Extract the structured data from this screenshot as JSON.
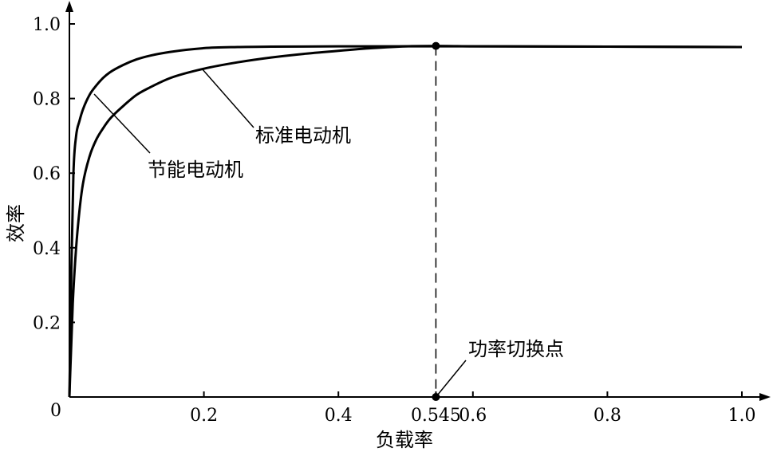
{
  "chart_data": {
    "type": "line",
    "title": "",
    "xlabel": "负载率",
    "ylabel": "效率",
    "xlim": [
      0,
      1.0
    ],
    "ylim": [
      0,
      1.0
    ],
    "x_ticks": [
      "0.2",
      "0.4",
      "0.545",
      "0.6",
      "0.8",
      "1.0"
    ],
    "x_tick_values": [
      0.2,
      0.4,
      0.545,
      0.6,
      0.8,
      1.0
    ],
    "y_ticks": [
      "0.2",
      "0.4",
      "0.6",
      "0.8",
      "1.0"
    ],
    "y_tick_values": [
      0.2,
      0.4,
      0.6,
      0.8,
      1.0
    ],
    "origin_label": "0",
    "grid": false,
    "series": [
      {
        "name": "节能电动机",
        "x": [
          0.0,
          0.003,
          0.006,
          0.01,
          0.015,
          0.02,
          0.03,
          0.04,
          0.05,
          0.06,
          0.08,
          0.1,
          0.12,
          0.15,
          0.2,
          0.25,
          0.3,
          0.4,
          0.5,
          0.6,
          0.8,
          1.0
        ],
        "values": [
          0.0,
          0.35,
          0.6,
          0.7,
          0.74,
          0.77,
          0.81,
          0.835,
          0.855,
          0.87,
          0.89,
          0.905,
          0.915,
          0.925,
          0.935,
          0.938,
          0.939,
          0.94,
          0.94,
          0.94,
          0.939,
          0.938
        ]
      },
      {
        "name": "标准电动机",
        "x": [
          0.0,
          0.005,
          0.01,
          0.015,
          0.02,
          0.03,
          0.04,
          0.05,
          0.06,
          0.08,
          0.1,
          0.12,
          0.15,
          0.2,
          0.25,
          0.3,
          0.35,
          0.4,
          0.45,
          0.5,
          0.545,
          0.6,
          0.8,
          1.0
        ],
        "values": [
          0.0,
          0.25,
          0.4,
          0.5,
          0.57,
          0.645,
          0.69,
          0.72,
          0.745,
          0.78,
          0.81,
          0.83,
          0.855,
          0.88,
          0.897,
          0.91,
          0.92,
          0.928,
          0.935,
          0.94,
          0.941,
          0.94,
          0.939,
          0.938
        ]
      }
    ],
    "annotations": [
      {
        "text": "功率切换点",
        "x": 0.545,
        "y": 0.941,
        "marker": true,
        "dashed_drop_line": true
      },
      {
        "text": "标准电动机",
        "leader_to_series": "标准电动机"
      },
      {
        "text": "节能电动机",
        "leader_to_series": "节能电动机"
      }
    ],
    "colors": {
      "line": "#000000",
      "background": "#ffffff"
    }
  }
}
